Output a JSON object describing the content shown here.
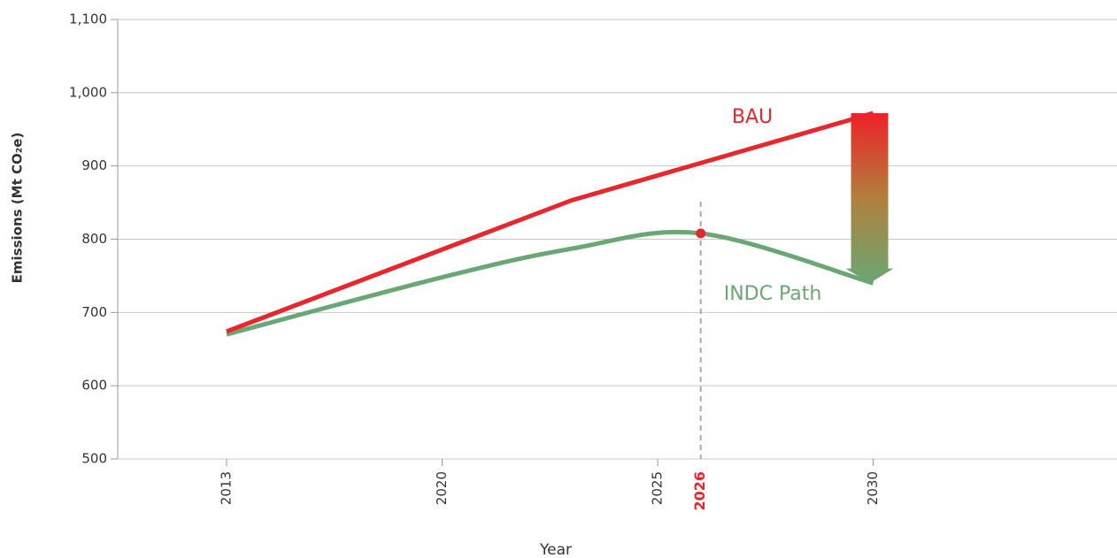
{
  "chart_data": {
    "type": "line",
    "x_label": "Year",
    "y_label": "Emissions (Mt CO₂e)",
    "ylim": [
      500,
      1100
    ],
    "yticks": [
      500,
      600,
      700,
      800,
      900,
      {
        "value": 1000,
        "label": "1,000"
      },
      {
        "value": 1100,
        "label": "1,100"
      }
    ],
    "xticks": [
      2013,
      2020,
      2025,
      2030
    ],
    "grid": true,
    "series": [
      {
        "name": "BAU",
        "color": "#e8262d",
        "x": [
          2013,
          2023,
          2030
        ],
        "values": [
          674,
          853,
          972
        ]
      },
      {
        "name": "INDC Path",
        "color": "#6aa774",
        "x": [
          2013,
          2020,
          2023,
          2026,
          2030
        ],
        "values": [
          670,
          748,
          787,
          808,
          740
        ]
      }
    ],
    "highlight": {
      "label": "2026",
      "color": "#e8262d"
    }
  }
}
